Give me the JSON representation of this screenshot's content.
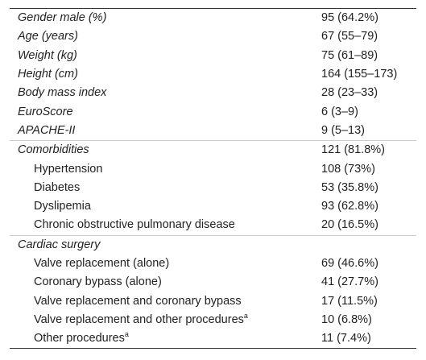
{
  "table": {
    "rows": [
      {
        "label": "Gender male (%)",
        "value": "95 (64.2%)"
      },
      {
        "label": "Age (years)",
        "value": "67 (55–79)"
      },
      {
        "label": "Weight (kg)",
        "value": "75 (61–89)"
      },
      {
        "label": "Height (cm)",
        "value": "164 (155–173)"
      },
      {
        "label": "Body mass index",
        "value": "28 (23–33)"
      },
      {
        "label": "EuroScore",
        "value": "6 (3–9)"
      },
      {
        "label": "APACHE-II",
        "value": "9 (5–13)"
      },
      {
        "label": "Comorbidities",
        "value": "121 (81.8%)"
      },
      {
        "label": "Hypertension",
        "value": "108 (73%)"
      },
      {
        "label": "Diabetes",
        "value": "53 (35.8%)"
      },
      {
        "label": "Dyslipemia",
        "value": "93 (62.8%)"
      },
      {
        "label": "Chronic obstructive pulmonary disease",
        "value": "20 (16.5%)"
      },
      {
        "label": "Cardiac surgery",
        "value": ""
      },
      {
        "label": "Valve replacement (alone)",
        "value": "69 (46.6%)"
      },
      {
        "label": "Coronary bypass (alone)",
        "value": "41 (27.7%)"
      },
      {
        "label": "Valve replacement and coronary bypass",
        "value": "17 (11.5%)"
      },
      {
        "label": "Valve replacement and other procedures",
        "sup": "a",
        "value": "10 (6.8%)"
      },
      {
        "label": "Other procedures",
        "sup": "a",
        "value": "11 (7.4%)"
      }
    ]
  }
}
